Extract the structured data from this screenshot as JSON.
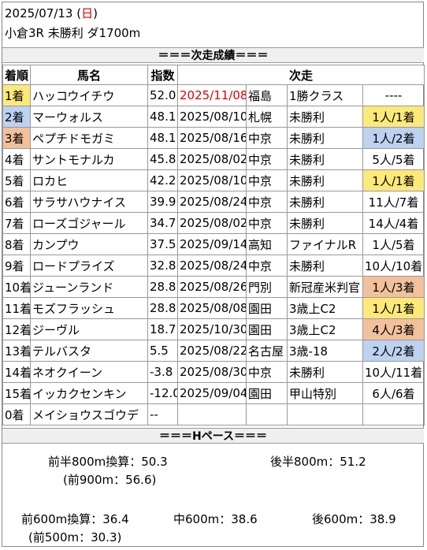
{
  "header": {
    "date_prefix": "2025/07/13 (",
    "weekday": "日",
    "date_suffix": ")",
    "race": "小倉3R 未勝利 ダ1700m"
  },
  "results_title": "＝＝＝次走成績＝＝＝",
  "columns": {
    "rank": "着順",
    "horse": "馬名",
    "index": "指数",
    "next": "次走"
  },
  "rows": [
    {
      "rank": "1着",
      "horse": "ハッコウイチウ",
      "index": "52.0",
      "date": "2025/11/08",
      "place": "福島",
      "race": "1勝クラス",
      "result": "----",
      "date_red": true,
      "rank_hl": "r1",
      "result_hl": ""
    },
    {
      "rank": "2着",
      "horse": "マーウォルス",
      "index": "48.1",
      "date": "2025/08/10",
      "place": "札幌",
      "race": "未勝利",
      "result": "1人/1着",
      "rank_hl": "r2",
      "result_hl": "r1"
    },
    {
      "rank": "3着",
      "horse": "ペプチドモガミ",
      "index": "48.1",
      "date": "2025/08/16",
      "place": "中京",
      "race": "未勝利",
      "result": "1人/2着",
      "rank_hl": "r3",
      "result_hl": "r2"
    },
    {
      "rank": "4着",
      "horse": "サントモナルカ",
      "index": "45.8",
      "date": "2025/08/02",
      "place": "中京",
      "race": "未勝利",
      "result": "5人/5着",
      "rank_hl": "",
      "result_hl": ""
    },
    {
      "rank": "5着",
      "horse": "ロカヒ",
      "index": "42.2",
      "date": "2025/08/10",
      "place": "中京",
      "race": "未勝利",
      "result": "1人/1着",
      "rank_hl": "",
      "result_hl": "r1"
    },
    {
      "rank": "6着",
      "horse": "サラサハウナイス",
      "index": "39.9",
      "date": "2025/08/24",
      "place": "中京",
      "race": "未勝利",
      "result": "11人/7着",
      "rank_hl": "",
      "result_hl": ""
    },
    {
      "rank": "7着",
      "horse": "ローズゴジャール",
      "index": "34.7",
      "date": "2025/08/02",
      "place": "中京",
      "race": "未勝利",
      "result": "14人/4着",
      "rank_hl": "",
      "result_hl": ""
    },
    {
      "rank": "8着",
      "horse": "カンプウ",
      "index": "37.5",
      "date": "2025/09/14",
      "place": "高知",
      "race": "ファイナルR",
      "result": "1人/5着",
      "rank_hl": "",
      "result_hl": ""
    },
    {
      "rank": "9着",
      "horse": "ロードプライズ",
      "index": "32.8",
      "date": "2025/08/24",
      "place": "中京",
      "race": "未勝利",
      "result": "10人/10着",
      "rank_hl": "",
      "result_hl": ""
    },
    {
      "rank": "10着",
      "horse": "ジューンランド",
      "index": "28.8",
      "date": "2025/08/26",
      "place": "門別",
      "race": "新冠産米判官",
      "result": "1人/3着",
      "rank_hl": "",
      "result_hl": "r3"
    },
    {
      "rank": "11着",
      "horse": "モズフラッシュ",
      "index": "28.8",
      "date": "2025/08/08",
      "place": "園田",
      "race": "3歳上C2",
      "result": "1人/1着",
      "rank_hl": "",
      "result_hl": "r1"
    },
    {
      "rank": "12着",
      "horse": "ジーヴル",
      "index": "18.7",
      "date": "2025/10/30",
      "place": "園田",
      "race": "3歳上C2",
      "result": "4人/3着",
      "rank_hl": "",
      "result_hl": "r3"
    },
    {
      "rank": "13着",
      "horse": "テルバスタ",
      "index": "5.5",
      "date": "2025/08/22",
      "place": "名古屋",
      "race": "3歳-18",
      "result": "2人/2着",
      "rank_hl": "",
      "result_hl": "r2"
    },
    {
      "rank": "14着",
      "horse": "ネオクイーン",
      "index": "-3.8",
      "date": "2025/08/30",
      "place": "中京",
      "race": "未勝利",
      "result": "10人/11着",
      "rank_hl": "",
      "result_hl": ""
    },
    {
      "rank": "15着",
      "horse": "イッカクセンキン",
      "index": "-12.0",
      "date": "2025/09/04",
      "place": "園田",
      "race": "甲山特別",
      "result": "6人/6着",
      "rank_hl": "",
      "result_hl": ""
    },
    {
      "rank": "0着",
      "horse": "メイショウスゴウデ",
      "index": "--",
      "date": "",
      "place": "",
      "race": "",
      "result": "",
      "rank_hl": "",
      "result_hl": ""
    }
  ],
  "pace_title": "＝＝＝Hペース＝＝＝",
  "pace": {
    "first800": "前半800m換算：50.3",
    "first900": "(前900m：56.6)",
    "last800": "後半800m：51.2",
    "first600": "前600m換算：36.4",
    "first500": "(前500m：30.3)",
    "mid600": "中600m：38.6",
    "last600": "後600m：38.9"
  }
}
